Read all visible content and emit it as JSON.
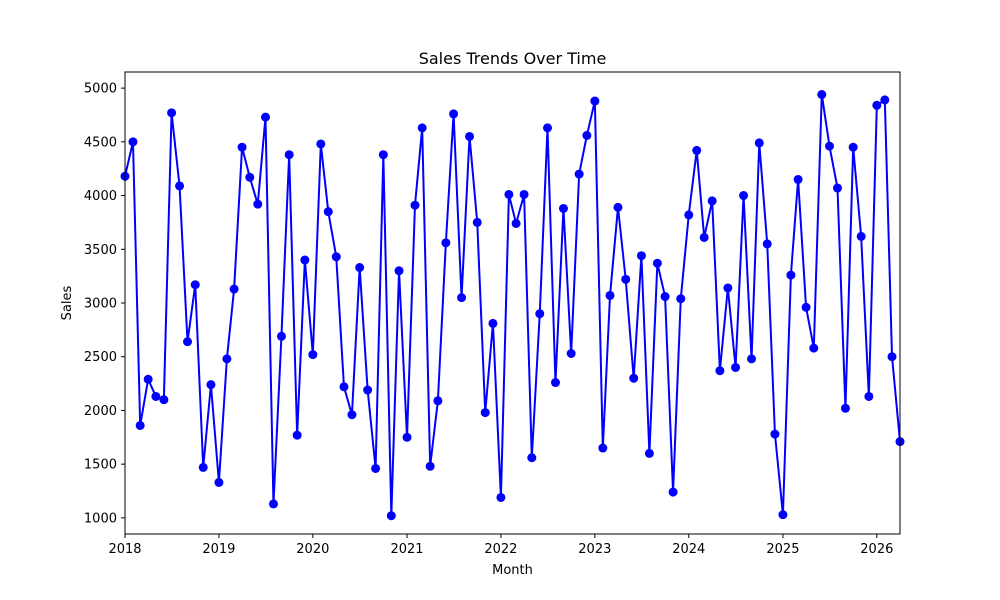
{
  "chart_data": {
    "type": "line",
    "title": "Sales Trends Over Time",
    "xlabel": "Month",
    "ylabel": "Sales",
    "x_start": "2018-01",
    "x_frequency": "monthly",
    "xlim": [
      "2018-01-01",
      "2026-04-01"
    ],
    "ylim": [
      850,
      5150
    ],
    "xticks": [
      "2018",
      "2019",
      "2020",
      "2021",
      "2022",
      "2023",
      "2024",
      "2025",
      "2026"
    ],
    "yticks": [
      1000,
      1500,
      2000,
      2500,
      3000,
      3500,
      4000,
      4500,
      5000
    ],
    "grid": false,
    "legend": "none",
    "series": [
      {
        "color": "#0000ff",
        "marker": "circle",
        "values": [
          4180,
          4500,
          1860,
          2290,
          2130,
          2100,
          4770,
          4090,
          2640,
          3170,
          1470,
          2240,
          1330,
          2480,
          3130,
          4450,
          4170,
          3920,
          4730,
          1130,
          2690,
          4380,
          1770,
          3400,
          2520,
          4480,
          3850,
          3430,
          2220,
          1960,
          3330,
          2190,
          1460,
          4380,
          1020,
          3300,
          1750,
          3910,
          4630,
          1480,
          2090,
          3560,
          4760,
          3050,
          4550,
          3750,
          1980,
          2810,
          1190,
          4010,
          3740,
          4010,
          1560,
          2900,
          4630,
          2260,
          3880,
          2530,
          4200,
          4560,
          4880,
          1650,
          3070,
          3890,
          3220,
          2300,
          3440,
          1600,
          3370,
          3060,
          1240,
          3040,
          3820,
          4420,
          3610,
          3950,
          2370,
          3140,
          2400,
          4000,
          2480,
          4490,
          3550,
          1780,
          1030,
          3260,
          4150,
          2960,
          2580,
          4940,
          4460,
          4070,
          2020,
          4450,
          3620,
          2130,
          4840,
          4890,
          2500,
          1710
        ]
      }
    ]
  }
}
